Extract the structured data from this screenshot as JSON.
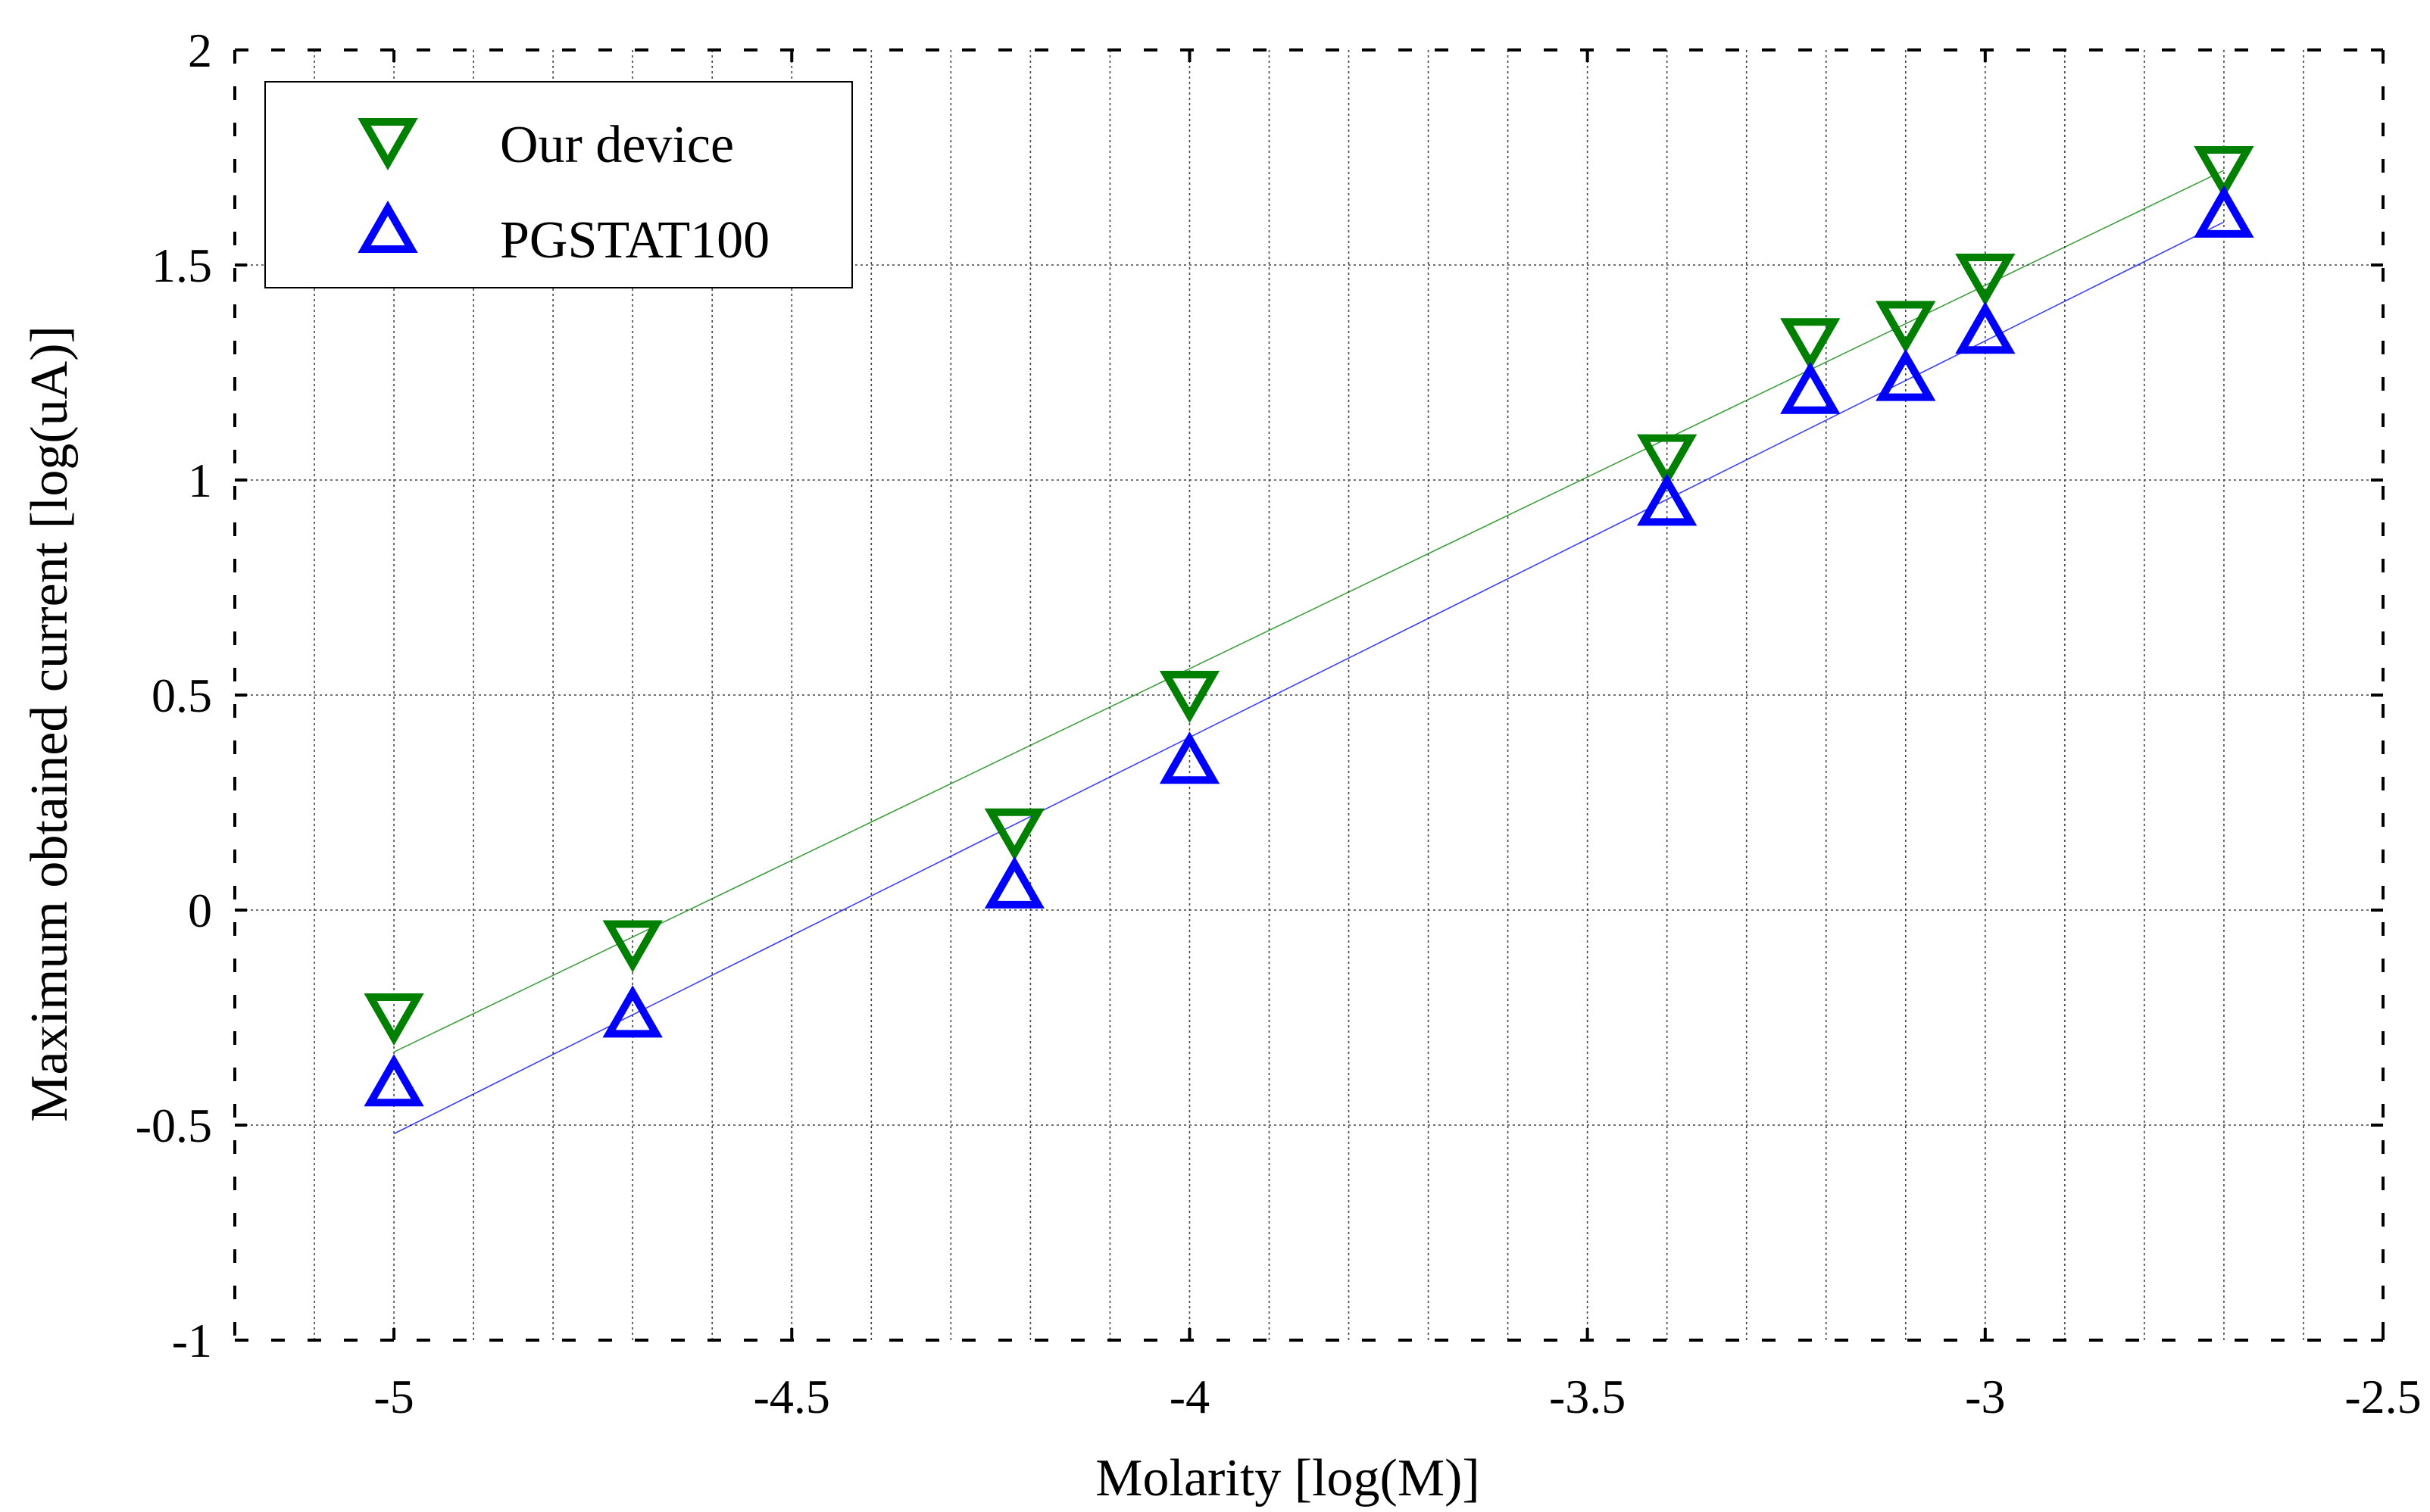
{
  "chart_data": {
    "type": "scatter",
    "title": "",
    "xlabel": "Molarity [log(M)]",
    "ylabel": "Maximum obtained current [log(uA)]",
    "xlim": [
      -5.2,
      -2.5
    ],
    "ylim": [
      -1,
      2
    ],
    "x_ticks": [
      -5,
      -4.5,
      -4,
      -3.5,
      -3,
      -2.5
    ],
    "x_tick_labels": [
      "-5",
      "-4.5",
      "-4",
      "-3.5",
      "-3",
      "-2.5"
    ],
    "y_ticks": [
      -1,
      -0.5,
      0,
      0.5,
      1,
      1.5,
      2
    ],
    "y_tick_labels": [
      "-1",
      "-0.5",
      "0",
      "0.5",
      "1",
      "1.5",
      "2"
    ],
    "grid": true,
    "minor_x_grid_step": 0.1,
    "legend_position": "top-left",
    "series": [
      {
        "name": "Our device",
        "marker": "triangle-down",
        "color": "#008000",
        "x": [
          -5,
          -4.7,
          -4.22,
          -4,
          -3.4,
          -3.22,
          -3.1,
          -3,
          -2.7
        ],
        "y": [
          -0.25,
          -0.08,
          0.18,
          0.5,
          1.05,
          1.32,
          1.36,
          1.47,
          1.72
        ],
        "fit": {
          "x": [
            -5,
            -2.7
          ],
          "y": [
            -0.33,
            1.72
          ]
        }
      },
      {
        "name": "PGSTAT100",
        "marker": "triangle-up",
        "color": "#0000ff",
        "x": [
          -5,
          -4.7,
          -4.22,
          -4,
          -3.4,
          -3.22,
          -3.1,
          -3,
          -2.7
        ],
        "y": [
          -0.4,
          -0.24,
          0.06,
          0.35,
          0.95,
          1.21,
          1.24,
          1.35,
          1.62
        ],
        "fit": {
          "x": [
            -5,
            -2.7
          ],
          "y": [
            -0.52,
            1.6
          ]
        }
      }
    ]
  }
}
